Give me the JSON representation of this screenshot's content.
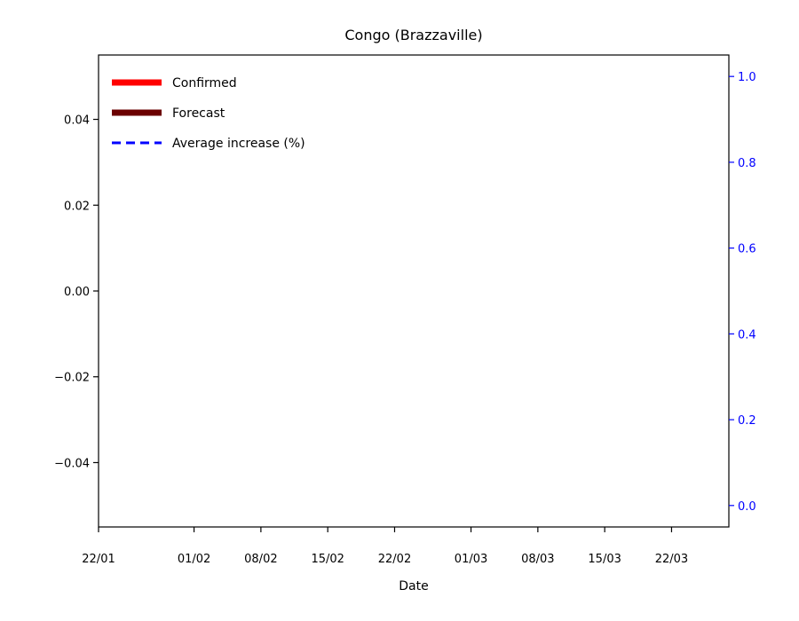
{
  "chart_data": {
    "type": "line",
    "title": "Congo (Brazzaville)",
    "xlabel": "Date",
    "ylabel": "",
    "ylim": [
      -0.055,
      0.055
    ],
    "y2lim": [
      -0.05,
      1.05
    ],
    "yticks": [
      "0.04",
      "0.02",
      "0.00",
      "−0.02",
      "−0.04"
    ],
    "yticks_values": [
      0.04,
      0.02,
      0.0,
      -0.02,
      -0.04
    ],
    "y2ticks": [
      "1.0",
      "0.8",
      "0.6",
      "0.4",
      "0.2",
      "0.0"
    ],
    "y2ticks_values": [
      1.0,
      0.8,
      0.6,
      0.4,
      0.2,
      0.0
    ],
    "x_range": [
      "2020-01-22",
      "2020-03-28"
    ],
    "xticks": [
      "22/01",
      "01/02",
      "08/02",
      "15/02",
      "22/02",
      "01/03",
      "08/03",
      "15/03",
      "22/03"
    ],
    "xticks_values": [
      "2020-01-22",
      "2020-02-01",
      "2020-02-08",
      "2020-02-15",
      "2020-02-22",
      "2020-03-01",
      "2020-03-08",
      "2020-03-15",
      "2020-03-22"
    ],
    "grid": false,
    "legend_position": "top-left",
    "series": [
      {
        "name": "Confirmed",
        "color": "#ff0000",
        "style": "solid",
        "values": []
      },
      {
        "name": "Forecast",
        "color": "#6b0000",
        "style": "solid",
        "values": []
      },
      {
        "name": "Average increase (%)",
        "color": "#0000ff",
        "style": "dashed",
        "axis": "right",
        "values": []
      }
    ],
    "right_axis_color": "#0000ff"
  }
}
